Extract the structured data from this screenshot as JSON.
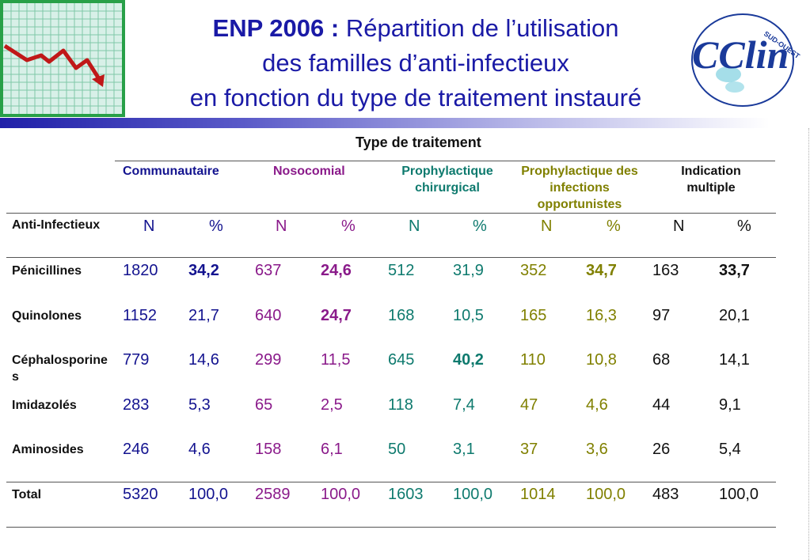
{
  "title": {
    "prefix": "ENP 2006 :",
    "line1": " Répartition de l’utilisation",
    "line2": "des familles d’anti-infectieux",
    "line3": "en fonction du type de traitement instauré"
  },
  "logo": {
    "text": "CClin",
    "subtext": "SUD-OUEST"
  },
  "colors": {
    "blue": "#13138f",
    "purple": "#8a1a8a",
    "teal": "#0e7a6e",
    "olive": "#808000"
  },
  "table": {
    "group_header": "Type de traitement",
    "columns": [
      {
        "label": "Communautaire"
      },
      {
        "label": "Nosocomial"
      },
      {
        "label": "Prophylactique chirurgical"
      },
      {
        "label": "Prophylactique des infections opportunistes"
      },
      {
        "label": "Indication multiple"
      }
    ],
    "row_header": "Anti-Infectieux",
    "sub_n": "N",
    "sub_pct": "%",
    "rows": [
      {
        "label": "Pénicillines",
        "values": [
          "1820",
          "34,2",
          "637",
          "24,6",
          "512",
          "31,9",
          "352",
          "34,7",
          "163",
          "33,7"
        ]
      },
      {
        "label": "Quinolones",
        "values": [
          "1152",
          "21,7",
          "640",
          "24,7",
          "168",
          "10,5",
          "165",
          "16,3",
          "97",
          "20,1"
        ]
      },
      {
        "label": "Céphalosporines",
        "values": [
          "779",
          "14,6",
          "299",
          "11,5",
          "645",
          "40,2",
          "110",
          "10,8",
          "68",
          "14,1"
        ]
      },
      {
        "label": "Imidazolés",
        "values": [
          "283",
          "5,3",
          "65",
          "2,5",
          "118",
          "7,4",
          "47",
          "4,6",
          "44",
          "9,1"
        ]
      },
      {
        "label": "Aminosides",
        "values": [
          "246",
          "4,6",
          "158",
          "6,1",
          "50",
          "3,1",
          "37",
          "3,6",
          "26",
          "5,4"
        ]
      },
      {
        "label": "Total",
        "values": [
          "5320",
          "100,0",
          "2589",
          "100,0",
          "1603",
          "100,0",
          "1014",
          "100,0",
          "483",
          "100,0"
        ]
      }
    ]
  }
}
